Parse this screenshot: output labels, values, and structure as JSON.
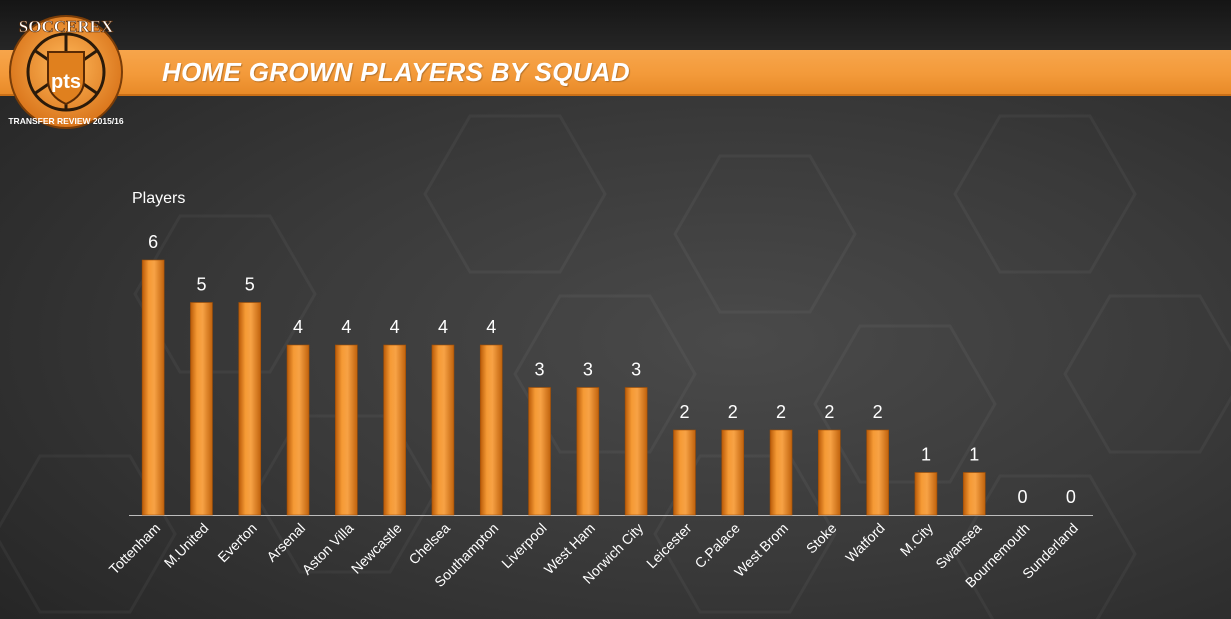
{
  "header": {
    "title": "HOME GROWN PLAYERS BY SQUAD"
  },
  "logo": {
    "brand": "SOCCEREX",
    "monogram": "pts",
    "ribbon": "TRANSFER REVIEW 2015/16"
  },
  "colors": {
    "accent": "#f39a3a",
    "bar": "#f08a1c",
    "text": "#ffffff"
  },
  "chart_data": {
    "type": "bar",
    "ylabel": "Players",
    "xlabel": "",
    "ylim": [
      0,
      6
    ],
    "grid": false,
    "categories": [
      "Tottenham",
      "M.United",
      "Everton",
      "Arsenal",
      "Aston Villa",
      "Newcastle",
      "Chelsea",
      "Southampton",
      "Liverpool",
      "West Ham",
      "Norwich City",
      "Leicester",
      "C.Palace",
      "West Brom",
      "Stoke",
      "Watford",
      "M.City",
      "Swansea",
      "Bournemouth",
      "Sunderland"
    ],
    "values": [
      6,
      5,
      5,
      4,
      4,
      4,
      4,
      4,
      3,
      3,
      3,
      2,
      2,
      2,
      2,
      2,
      1,
      1,
      0,
      0
    ]
  }
}
